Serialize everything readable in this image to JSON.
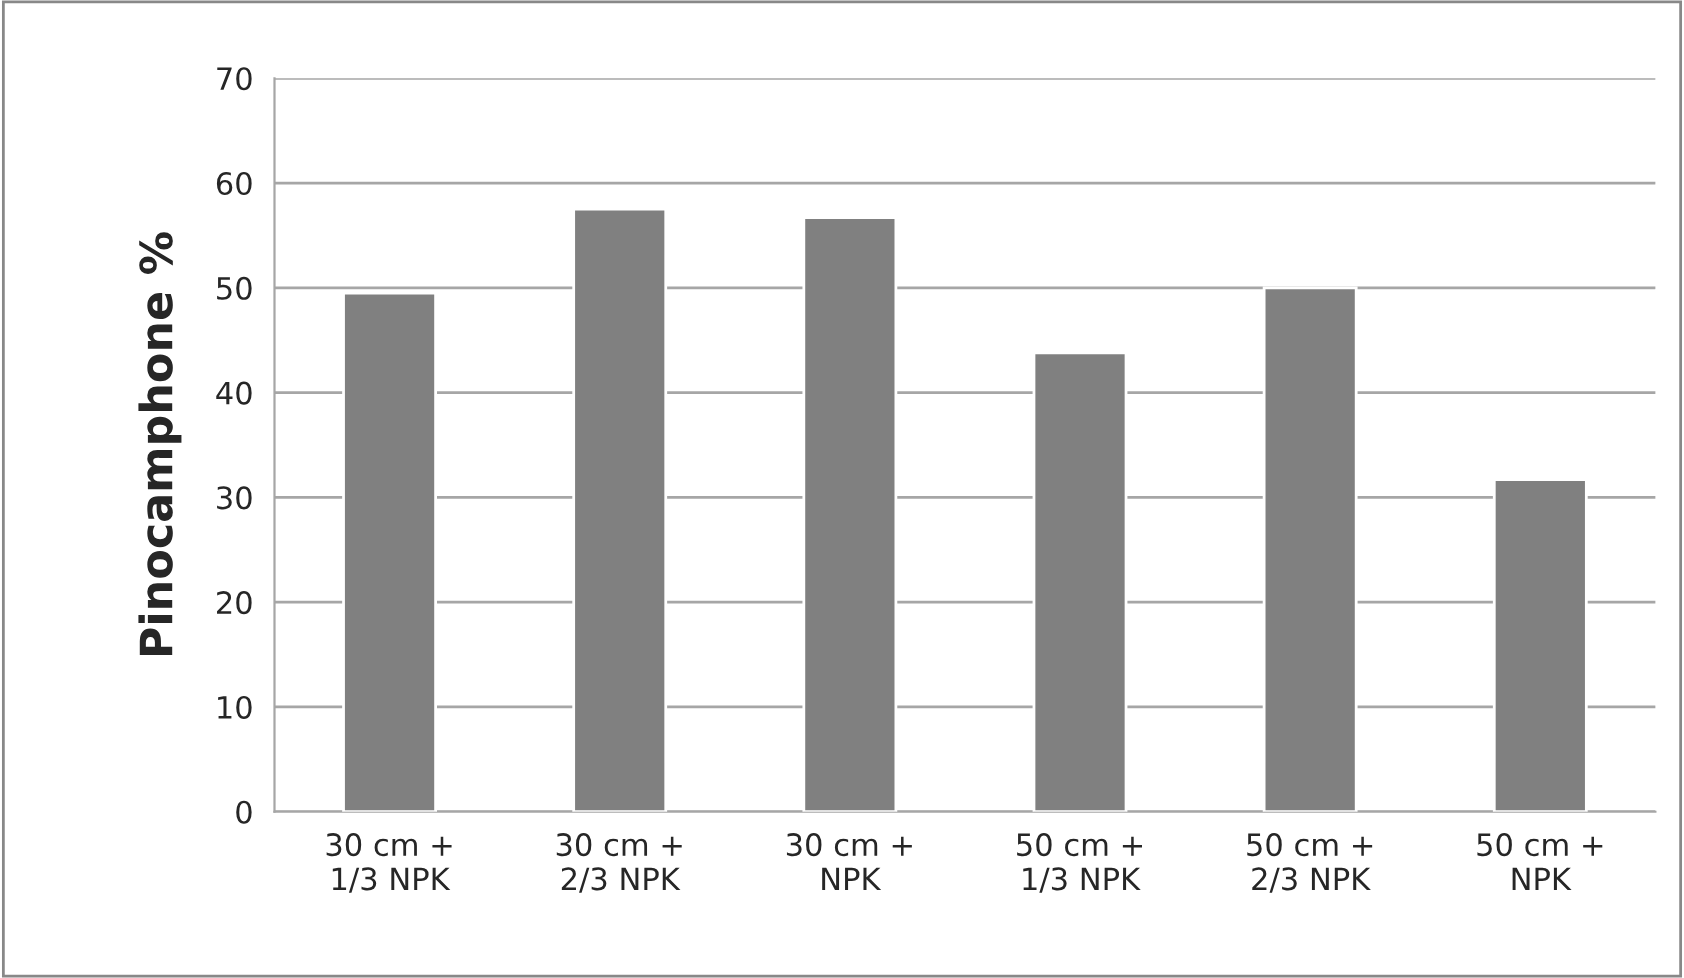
{
  "chart_data": {
    "type": "bar",
    "ylabel": "Pinocamphone %",
    "categories": [
      "30 cm +\n1/3 NPK",
      "30 cm +\n2/3 NPK",
      "30 cm +\nNPK",
      "50 cm +\n1/3 NPK",
      "50 cm +\n2/3 NPK",
      "50 cm +\nNPK"
    ],
    "values": [
      49.5,
      57.5,
      56.7,
      43.8,
      50.0,
      31.7
    ],
    "color": "#808080",
    "ylim": [
      0,
      70
    ],
    "yticks": [
      0,
      10,
      20,
      30,
      40,
      50,
      60,
      70
    ],
    "grid": "y"
  }
}
